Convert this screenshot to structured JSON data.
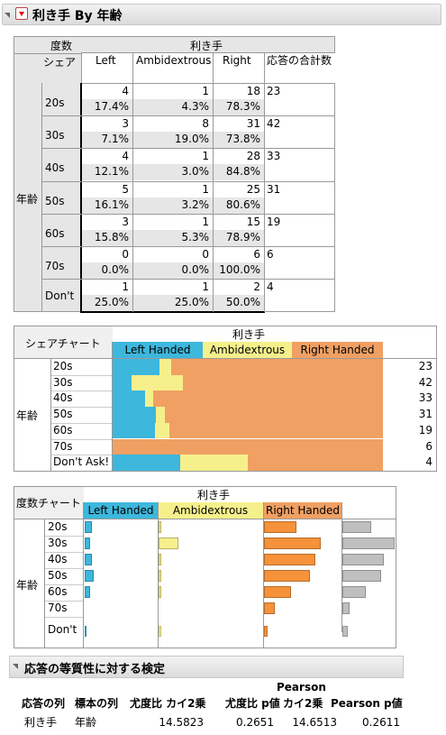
{
  "report": {
    "title": "利き手 By 年齢"
  },
  "contingency": {
    "header_labels": [
      "度数",
      "シェア"
    ],
    "column_group": "利き手",
    "columns": [
      "Left",
      "Ambidextrous",
      "Right",
      "応答の合計数"
    ],
    "row_group": "年齢",
    "rows": [
      {
        "label": "20s",
        "counts": [
          "4",
          "1",
          "18"
        ],
        "total": "23",
        "shares": [
          "17.4%",
          "4.3%",
          "78.3%"
        ]
      },
      {
        "label": "30s",
        "counts": [
          "3",
          "8",
          "31"
        ],
        "total": "42",
        "shares": [
          "7.1%",
          "19.0%",
          "73.8%"
        ]
      },
      {
        "label": "40s",
        "counts": [
          "4",
          "1",
          "28"
        ],
        "total": "33",
        "shares": [
          "12.1%",
          "3.0%",
          "84.8%"
        ]
      },
      {
        "label": "50s",
        "counts": [
          "5",
          "1",
          "25"
        ],
        "total": "31",
        "shares": [
          "16.1%",
          "3.2%",
          "80.6%"
        ]
      },
      {
        "label": "60s",
        "counts": [
          "3",
          "1",
          "15"
        ],
        "total": "19",
        "shares": [
          "15.8%",
          "5.3%",
          "78.9%"
        ]
      },
      {
        "label": "70s",
        "counts": [
          "0",
          "0",
          "6"
        ],
        "total": "6",
        "shares": [
          "0.0%",
          "0.0%",
          "100.0%"
        ]
      },
      {
        "label": "Don't",
        "counts": [
          "1",
          "1",
          "2"
        ],
        "total": "4",
        "shares": [
          "25.0%",
          "25.0%",
          "50.0%"
        ]
      }
    ]
  },
  "share_chart": {
    "corner_label": "シェアチャート",
    "column_group": "利き手",
    "legend": [
      "Left Handed",
      "Ambidextrous",
      "Right Handed"
    ],
    "row_group": "年齢",
    "rows": [
      "20s",
      "30s",
      "40s",
      "50s",
      "60s",
      "70s",
      "Don't Ask!"
    ],
    "totals": [
      "23",
      "42",
      "33",
      "31",
      "19",
      "6",
      "4"
    ]
  },
  "count_chart": {
    "corner_label": "度数チャート",
    "column_group": "利き手",
    "legend": [
      "Left Handed",
      "Ambidextrous",
      "Right Handed"
    ],
    "row_group": "年齢",
    "rows": [
      "20s",
      "30s",
      "40s",
      "50s",
      "60s",
      "70s",
      "Don't"
    ]
  },
  "test": {
    "title": "応答の等質性に対する検定",
    "header_top": "Pearson",
    "headers": [
      "応答の列",
      "標本の列",
      "尤度比 カイ2乗",
      "尤度比 p値",
      "カイ2乗",
      "Pearson p値"
    ],
    "values": [
      "利き手",
      "年齢",
      "14.5823",
      "0.2651",
      "14.6513",
      "0.2611"
    ]
  },
  "colors": {
    "left": "#3db7dc",
    "ambi": "#f5f08c",
    "right": "#f0a063",
    "right_count": "#f5923a",
    "total_bar": "#bfbfbf"
  },
  "chart_data": [
    {
      "type": "bar",
      "categories": [
        "20s",
        "30s",
        "40s",
        "50s",
        "60s",
        "70s",
        "Don't Ask!"
      ],
      "series": [
        {
          "name": "Left Handed",
          "values": [
            17.4,
            7.1,
            12.1,
            16.1,
            15.8,
            0.0,
            25.0
          ]
        },
        {
          "name": "Ambidextrous",
          "values": [
            4.3,
            19.0,
            3.0,
            3.2,
            5.3,
            0.0,
            25.0
          ]
        },
        {
          "name": "Right Handed",
          "values": [
            78.3,
            73.8,
            84.8,
            80.6,
            78.9,
            100.0,
            50.0
          ]
        }
      ],
      "stacked": true
    },
    {
      "type": "bar",
      "categories": [
        "20s",
        "30s",
        "40s",
        "50s",
        "60s",
        "70s",
        "Don't"
      ],
      "series": [
        {
          "name": "Left Handed",
          "values": [
            4,
            3,
            4,
            5,
            3,
            0,
            1
          ]
        },
        {
          "name": "Ambidextrous",
          "values": [
            1,
            8,
            1,
            1,
            1,
            0,
            1
          ]
        },
        {
          "name": "Right Handed",
          "values": [
            18,
            31,
            28,
            25,
            15,
            6,
            2
          ]
        },
        {
          "values": [
            23,
            42,
            33,
            31,
            19,
            6,
            4
          ]
        }
      ]
    }
  ]
}
